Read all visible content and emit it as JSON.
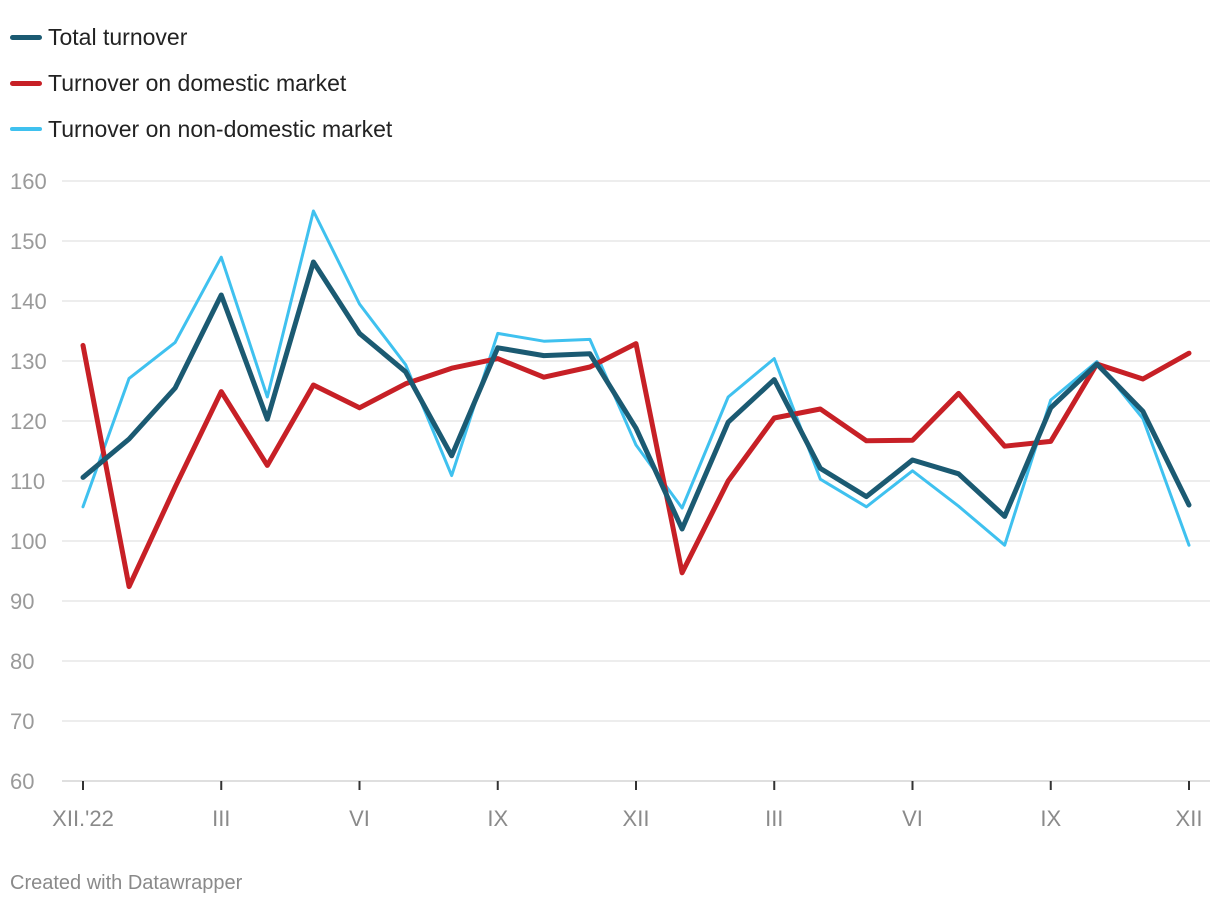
{
  "credit": "Created with Datawrapper",
  "chart_data": {
    "type": "line",
    "ylim": [
      60,
      160
    ],
    "yticks": [
      60,
      70,
      80,
      90,
      100,
      110,
      120,
      130,
      140,
      150,
      160
    ],
    "grid": true,
    "legend_position": "top-left",
    "x": [
      "XII.'22",
      "I",
      "II",
      "III",
      "IV",
      "V",
      "VI",
      "VII",
      "VIII",
      "IX",
      "X",
      "XI",
      "XII",
      "I",
      "II",
      "III",
      "IV",
      "V",
      "VI",
      "VII",
      "VIII",
      "IX",
      "X",
      "XI",
      "XII"
    ],
    "x_tick_labels": [
      {
        "index": 0,
        "label": "XII.'22"
      },
      {
        "index": 3,
        "label": "III"
      },
      {
        "index": 6,
        "label": "VI"
      },
      {
        "index": 9,
        "label": "IX"
      },
      {
        "index": 12,
        "label": "XII"
      },
      {
        "index": 15,
        "label": "III"
      },
      {
        "index": 18,
        "label": "VI"
      },
      {
        "index": 21,
        "label": "IX"
      },
      {
        "index": 24,
        "label": "XII"
      }
    ],
    "series": [
      {
        "name": "Total turnover",
        "color": "#1b5a72",
        "values": [
          110.6,
          117.0,
          125.5,
          141.0,
          120.3,
          146.5,
          134.6,
          128.2,
          114.2,
          132.2,
          130.9,
          131.2,
          118.8,
          102.0,
          119.8,
          126.9,
          112.1,
          107.4,
          113.5,
          111.2,
          104.1,
          122.2,
          129.5,
          121.6,
          106.0
        ]
      },
      {
        "name": "Turnover on domestic market",
        "color": "#c72026",
        "values": [
          132.6,
          92.4,
          109.0,
          124.9,
          112.6,
          126.0,
          122.2,
          126.2,
          128.8,
          130.4,
          127.3,
          129.0,
          132.9,
          94.7,
          110.0,
          120.5,
          122.0,
          116.7,
          116.8,
          124.6,
          115.8,
          116.6,
          129.5,
          127.0,
          131.3
        ]
      },
      {
        "name": "Turnover on non-domestic market",
        "color": "#3fc1ef",
        "values": [
          105.7,
          127.1,
          133.1,
          147.3,
          124.0,
          155.0,
          139.5,
          129.4,
          110.9,
          134.6,
          133.3,
          133.6,
          116.0,
          105.5,
          124.0,
          130.4,
          110.3,
          105.7,
          111.7,
          105.8,
          99.3,
          123.5,
          129.9,
          120.4,
          99.3
        ]
      }
    ]
  }
}
